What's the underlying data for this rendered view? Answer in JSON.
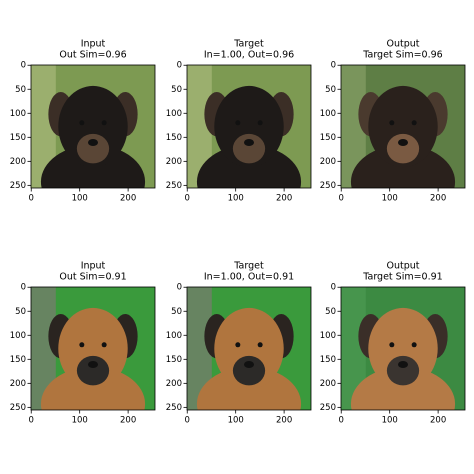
{
  "panels": [
    {
      "title_lines": [
        "Input",
        "Out Sim=0.96"
      ],
      "xlim": [
        -0.5,
        255.5
      ],
      "ylim": [
        255.5,
        -0.5
      ],
      "xticks": [
        0,
        100,
        200
      ],
      "yticks": [
        0,
        50,
        100,
        150,
        200,
        250
      ]
    },
    {
      "title_lines": [
        "Target",
        "In=1.00, Out=0.96"
      ],
      "xlim": [
        -0.5,
        255.5
      ],
      "ylim": [
        255.5,
        -0.5
      ],
      "xticks": [
        0,
        100,
        200
      ],
      "yticks": [
        0,
        50,
        100,
        150,
        200,
        250
      ]
    },
    {
      "title_lines": [
        "Output",
        "Target Sim=0.96"
      ],
      "xlim": [
        -0.5,
        255.5
      ],
      "ylim": [
        255.5,
        -0.5
      ],
      "xticks": [
        0,
        100,
        200
      ],
      "yticks": [
        0,
        50,
        100,
        150,
        200,
        250
      ]
    },
    {
      "title_lines": [
        "Input",
        "Out Sim=0.91"
      ],
      "xlim": [
        -0.5,
        255.5
      ],
      "ylim": [
        255.5,
        -0.5
      ],
      "xticks": [
        0,
        100,
        200
      ],
      "yticks": [
        0,
        50,
        100,
        150,
        200,
        250
      ]
    },
    {
      "title_lines": [
        "Target",
        "In=1.00, Out=0.91"
      ],
      "xlim": [
        -0.5,
        255.5
      ],
      "ylim": [
        255.5,
        -0.5
      ],
      "xticks": [
        0,
        100,
        200
      ],
      "yticks": [
        0,
        50,
        100,
        150,
        200,
        250
      ]
    },
    {
      "title_lines": [
        "Output",
        "Target Sim=0.91"
      ],
      "xlim": [
        -0.5,
        255.5
      ],
      "ylim": [
        255.5,
        -0.5
      ],
      "xticks": [
        0,
        100,
        200
      ],
      "yticks": [
        0,
        50,
        100,
        150,
        200,
        250
      ]
    }
  ]
}
